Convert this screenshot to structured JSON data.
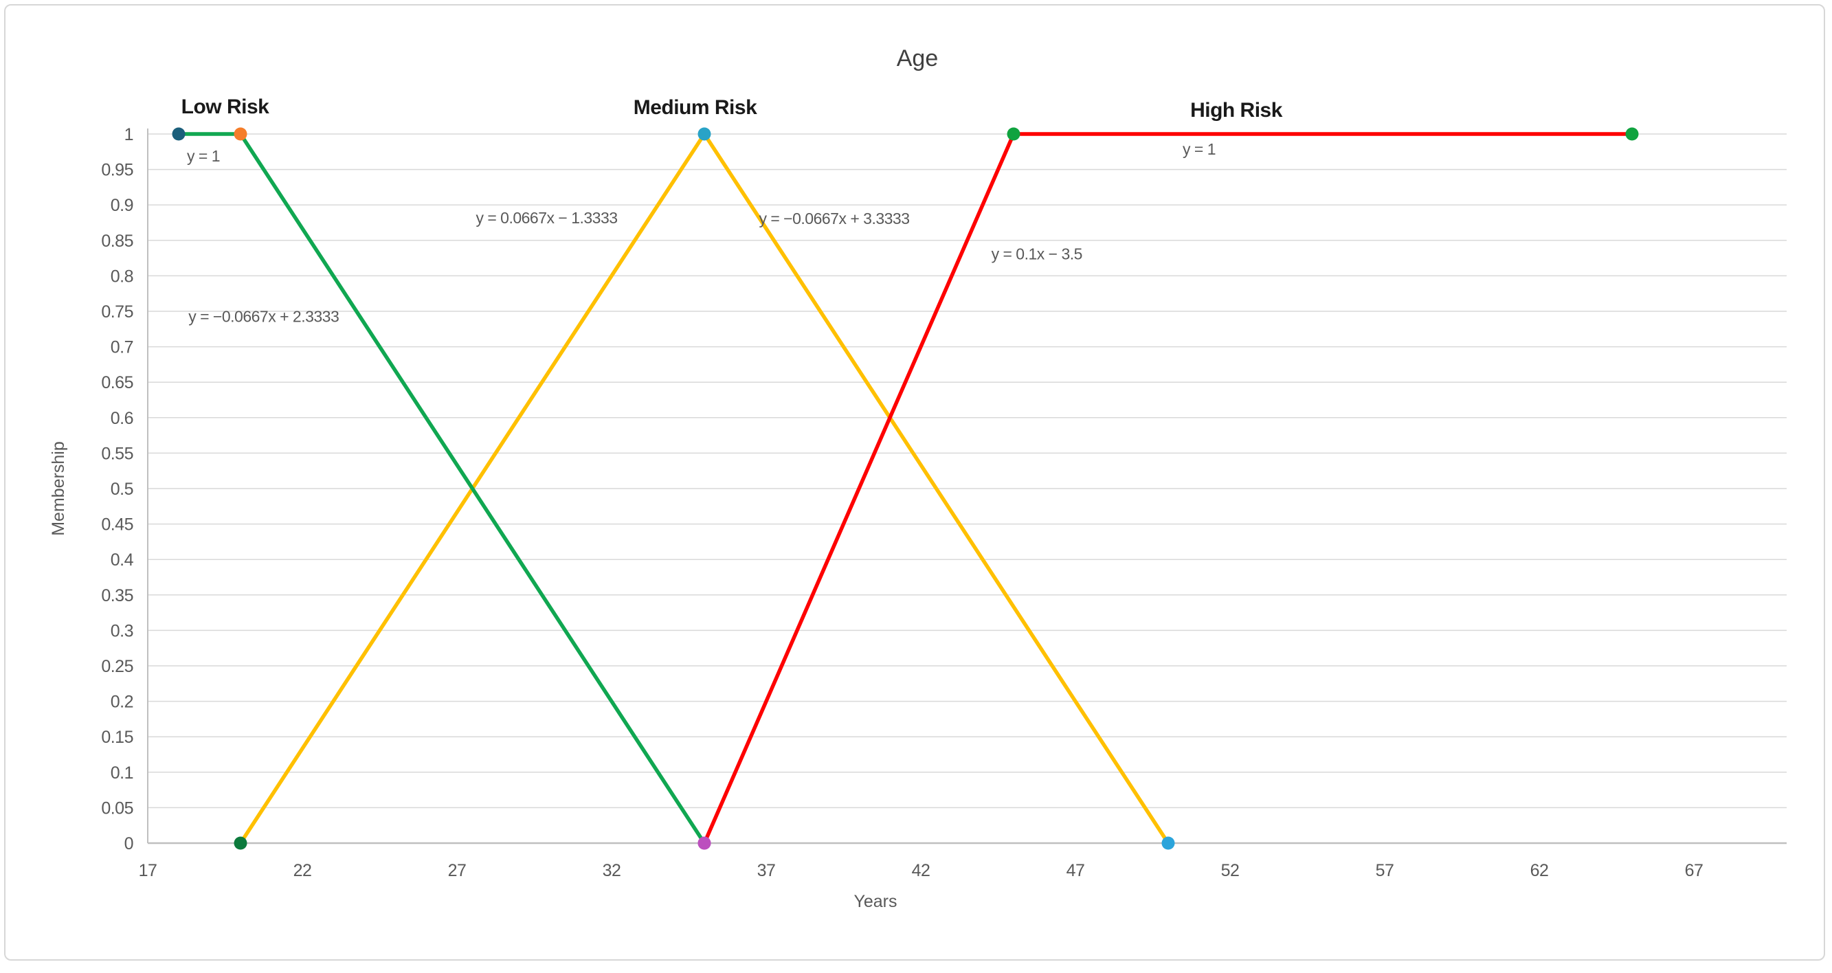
{
  "chart_data": {
    "type": "line",
    "title": "Age",
    "xlabel": "Years",
    "ylabel": "Membership",
    "xlim": [
      17,
      70
    ],
    "ylim": [
      0,
      1
    ],
    "x_ticks": [
      17,
      22,
      27,
      32,
      37,
      42,
      47,
      52,
      57,
      62,
      67
    ],
    "y_tick_step": 0.05,
    "grid": "horizontal-only",
    "legend": "none",
    "colors": {
      "gridline": "#d9d9d9",
      "axis_line": "#bfbfbf",
      "title_text": "#404040",
      "tick_text": "#595959",
      "annotation_text": "#595959",
      "series_label_text": "#1a1a1a"
    },
    "series": [
      {
        "name": "Medium Risk",
        "color": "#FFC000",
        "points": [
          [
            20,
            0
          ],
          [
            35,
            1
          ],
          [
            50,
            0
          ]
        ],
        "marker_colors": [
          "#0C7A3C",
          "#29A3C7",
          "#2BA4DB"
        ]
      },
      {
        "name": "Low Risk",
        "color": "#10A751",
        "points": [
          [
            18,
            1
          ],
          [
            20,
            1
          ],
          [
            35,
            0
          ]
        ],
        "marker_colors": [
          "#1B5F7B",
          "#F57D29",
          "#BC4FBE"
        ]
      },
      {
        "name": "High Risk",
        "color": "#FE0000",
        "points": [
          [
            35,
            0
          ],
          [
            45,
            1
          ],
          [
            65,
            1
          ]
        ],
        "marker_colors": [
          "#BC4FBE",
          "#10A33F",
          "#10A33F"
        ]
      }
    ],
    "annotations": {
      "series_labels": [
        {
          "text": "Low Risk",
          "x": 19.5,
          "y": 1.029
        },
        {
          "text": "Medium Risk",
          "x": 34.7,
          "y": 1.028
        },
        {
          "text": "High Risk",
          "x": 52.2,
          "y": 1.024
        }
      ],
      "equations": [
        {
          "text": "y = 1",
          "x": 18.8,
          "y": 0.961
        },
        {
          "text": "y = −0.0667x + 2.3333",
          "x": 20.75,
          "y": 0.735
        },
        {
          "text": "y = 0.0667x − 1.3333",
          "x": 29.9,
          "y": 0.874
        },
        {
          "text": "y = −0.0667x + 3.3333",
          "x": 39.2,
          "y": 0.873
        },
        {
          "text": "y = 0.1x − 3.5",
          "x": 45.75,
          "y": 0.823
        },
        {
          "text": "y = 1",
          "x": 51.0,
          "y": 0.971
        }
      ]
    }
  }
}
